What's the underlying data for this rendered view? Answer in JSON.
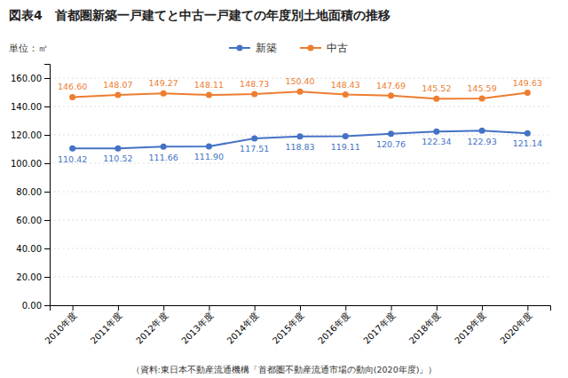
{
  "chart_data": {
    "type": "line",
    "title": "図表4　首都圏新築一戸建てと中古一戸建ての年度別土地面積の推移",
    "ylabel": "単位：㎡",
    "annotations": [
      "（資料:東日本不動産流通機構「首都圏不動産流通市場の動向(2020年度)」）"
    ],
    "categories": [
      "2010年度",
      "2011年度",
      "2012年度",
      "2013年度",
      "2014年度",
      "2015年度",
      "2016年度",
      "2017年度",
      "2018年度",
      "2019年度",
      "2020年度"
    ],
    "series": [
      {
        "name": "新築",
        "color": "#4472C4",
        "values": [
          110.42,
          110.52,
          111.66,
          111.9,
          117.51,
          118.83,
          119.11,
          120.76,
          122.34,
          122.93,
          121.14
        ],
        "value_labels": [
          "110.42",
          "110.52",
          "111.66",
          "111.90",
          "117.51",
          "118.83",
          "119.11",
          "120.76",
          "122.34",
          "122.93",
          "121.14"
        ]
      },
      {
        "name": "中古",
        "color": "#ED7D31",
        "values": [
          146.6,
          148.07,
          149.27,
          148.11,
          148.73,
          150.4,
          148.43,
          147.69,
          145.52,
          145.59,
          149.63
        ],
        "value_labels": [
          "146.60",
          "148.07",
          "149.27",
          "148.11",
          "148.73",
          "150.40",
          "148.43",
          "147.69",
          "145.52",
          "145.59",
          "149.63"
        ]
      }
    ],
    "ylim": [
      0,
      170
    ],
    "yticks": [
      {
        "value": 0,
        "label": "0.00"
      },
      {
        "value": 20,
        "label": "20.00"
      },
      {
        "value": 40,
        "label": "40.00"
      },
      {
        "value": 60,
        "label": "60.00"
      },
      {
        "value": 80,
        "label": "80.00"
      },
      {
        "value": 100,
        "label": "100.00"
      },
      {
        "value": 120,
        "label": "120.00"
      },
      {
        "value": 140,
        "label": "140.00"
      },
      {
        "value": 160,
        "label": "160.00"
      }
    ],
    "grid": true,
    "legend": "top",
    "data_labels": true,
    "marker": "circle"
  }
}
